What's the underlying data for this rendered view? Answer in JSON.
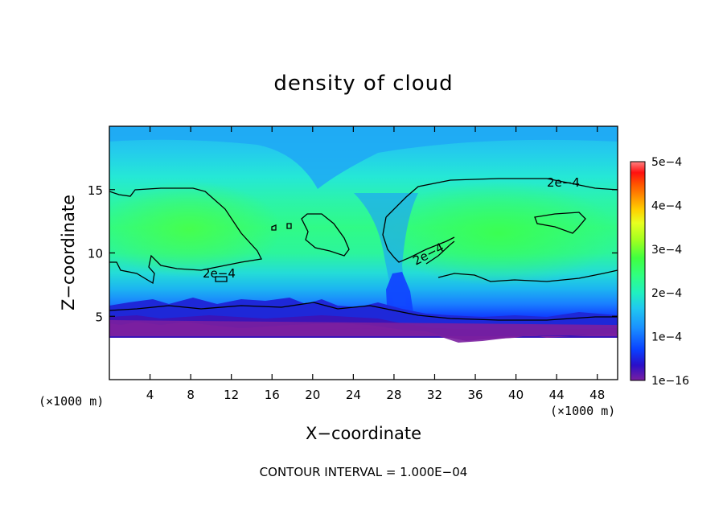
{
  "chart_data": {
    "type": "heatmap",
    "title": "density of cloud",
    "xlabel": "X−coordinate",
    "ylabel": "Z−coordinate",
    "x_unit_label": "(×1000 m)",
    "y_unit_label": "(×1000 m)",
    "xlim": [
      0,
      50
    ],
    "ylim": [
      0,
      20
    ],
    "x_ticks": [
      4,
      8,
      12,
      16,
      20,
      24,
      28,
      32,
      36,
      40,
      44,
      48
    ],
    "y_ticks": [
      5,
      10,
      15
    ],
    "colorbar": {
      "min": 1e-16,
      "max": 0.0005,
      "tick_labels": [
        "5e−4",
        "4e−4",
        "3e−4",
        "2e−4",
        "1e−4",
        "1e−16"
      ],
      "colors": [
        "#7a1fa0",
        "#2a0fc8",
        "#0a40ff",
        "#1a90ff",
        "#20c8f0",
        "#20f0c0",
        "#30ff80",
        "#40ff40",
        "#a0ff20",
        "#e8ff20",
        "#ffd000",
        "#ff9000",
        "#ff5000",
        "#ff1010",
        "#ff8080"
      ]
    },
    "contour_interval_text": "CONTOUR INTERVAL = 1.000E−04",
    "contour_labels": [
      "2e−4",
      "2e−4",
      "2e−4"
    ]
  }
}
